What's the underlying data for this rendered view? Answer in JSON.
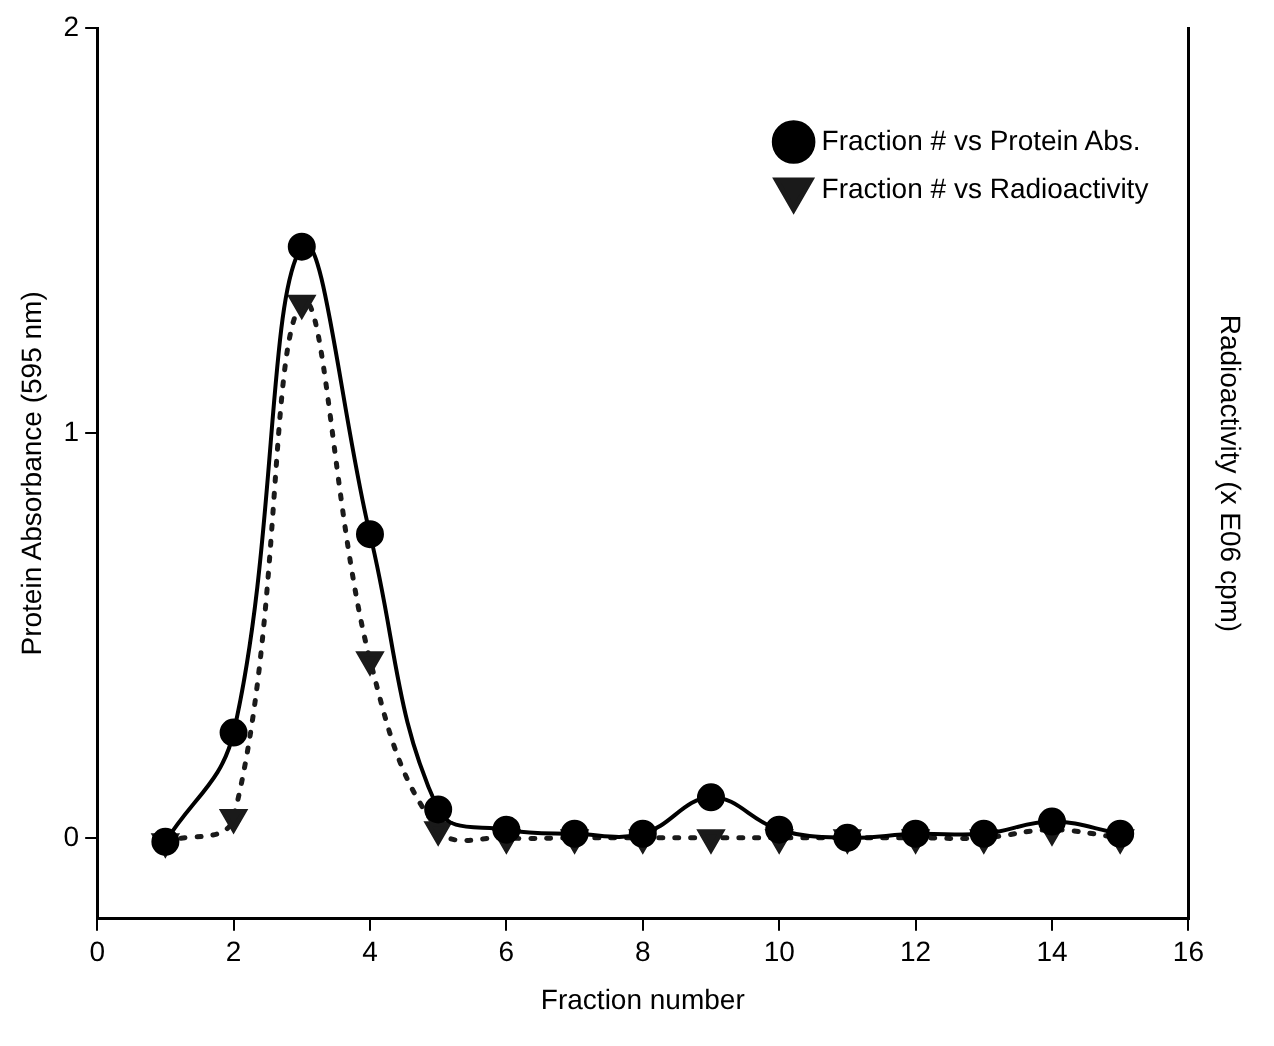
{
  "chart_data": {
    "type": "line",
    "xlabel": "Fraction number",
    "ylabel": "Protein Absorbance (595 nm)",
    "y2label": "Radioactivity (x E06 cpm)",
    "x": [
      1,
      2,
      3,
      4,
      5,
      6,
      7,
      8,
      9,
      10,
      11,
      12,
      13,
      14,
      15
    ],
    "series": [
      {
        "name": "Fraction # vs Protein Abs.",
        "color": "#000000",
        "marker": "circle",
        "line_style": "solid",
        "values": [
          -0.01,
          0.26,
          1.46,
          0.75,
          0.07,
          0.02,
          0.01,
          0.01,
          0.1,
          0.02,
          0.0,
          0.01,
          0.01,
          0.04,
          0.01
        ]
      },
      {
        "name": "Fraction # vs Radioactivity",
        "color": "#1a1a1a",
        "marker": "triangle",
        "line_style": "dotted",
        "values": [
          -0.01,
          0.05,
          1.32,
          0.44,
          0.02,
          0.0,
          0.0,
          0.0,
          0.0,
          0.0,
          0.0,
          0.0,
          0.0,
          0.02,
          0.0
        ]
      }
    ],
    "xlim": [
      0,
      16
    ],
    "xticks": [
      0,
      2,
      4,
      6,
      8,
      10,
      12,
      14,
      16
    ],
    "ylim": [
      -0.2,
      2
    ],
    "yticks": [
      0,
      1,
      2
    ],
    "grid": false,
    "legend": "top right"
  }
}
